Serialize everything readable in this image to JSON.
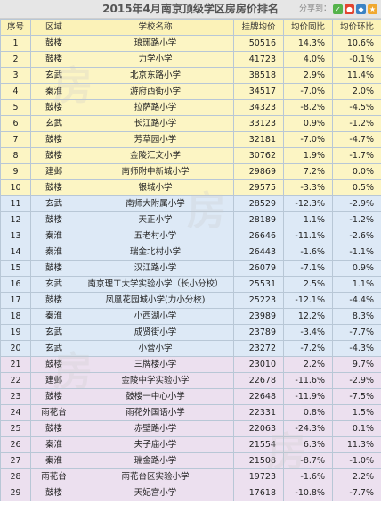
{
  "title": "2015年4月南京顶级学区房房价排名",
  "share": {
    "label": "分享到：",
    "icons": [
      "wechat-icon",
      "weibo-icon",
      "qq-icon",
      "star-icon"
    ]
  },
  "headers": [
    "序号",
    "区域",
    "学校名称",
    "挂牌均价",
    "均价同比",
    "均价环比"
  ],
  "rows": [
    [
      "1",
      "鼓楼",
      "琅琊路小学",
      "50516",
      "14.3%",
      "10.6%"
    ],
    [
      "2",
      "鼓楼",
      "力学小学",
      "41723",
      "4.0%",
      "-0.1%"
    ],
    [
      "3",
      "玄武",
      "北京东路小学",
      "38518",
      "2.9%",
      "11.4%"
    ],
    [
      "4",
      "秦淮",
      "游府西街小学",
      "34517",
      "-7.0%",
      "2.0%"
    ],
    [
      "5",
      "鼓楼",
      "拉萨路小学",
      "34323",
      "-8.2%",
      "-4.5%"
    ],
    [
      "6",
      "玄武",
      "长江路小学",
      "33123",
      "0.9%",
      "-1.2%"
    ],
    [
      "7",
      "鼓楼",
      "芳草园小学",
      "32181",
      "-7.0%",
      "-4.7%"
    ],
    [
      "8",
      "鼓楼",
      "金陵汇文小学",
      "30762",
      "1.9%",
      "-1.7%"
    ],
    [
      "9",
      "建邺",
      "南师附中新城小学",
      "29869",
      "7.2%",
      "0.0%"
    ],
    [
      "10",
      "鼓楼",
      "银城小学",
      "29575",
      "-3.3%",
      "0.5%"
    ],
    [
      "11",
      "玄武",
      "南师大附属小学",
      "28529",
      "-12.3%",
      "-2.9%"
    ],
    [
      "12",
      "鼓楼",
      "天正小学",
      "28189",
      "1.1%",
      "-1.2%"
    ],
    [
      "13",
      "秦淮",
      "五老村小学",
      "26646",
      "-11.1%",
      "-2.6%"
    ],
    [
      "14",
      "秦淮",
      "瑞金北村小学",
      "26443",
      "-1.6%",
      "-1.1%"
    ],
    [
      "15",
      "鼓楼",
      "汉江路小学",
      "26079",
      "-7.1%",
      "0.9%"
    ],
    [
      "16",
      "玄武",
      "南京理工大学实验小学（长小分校）",
      "25531",
      "2.5%",
      "1.1%"
    ],
    [
      "17",
      "鼓楼",
      "凤凰花园城小学(力小分校)",
      "25223",
      "-12.1%",
      "-4.4%"
    ],
    [
      "18",
      "秦淮",
      "小西湖小学",
      "23989",
      "12.2%",
      "8.3%"
    ],
    [
      "19",
      "玄武",
      "成贤街小学",
      "23789",
      "-3.4%",
      "-7.7%"
    ],
    [
      "20",
      "玄武",
      "小营小学",
      "23272",
      "-7.2%",
      "-4.3%"
    ],
    [
      "21",
      "鼓楼",
      "三牌楼小学",
      "23010",
      "2.2%",
      "9.7%"
    ],
    [
      "22",
      "建邺",
      "金陵中学实验小学",
      "22678",
      "-11.6%",
      "-2.9%"
    ],
    [
      "23",
      "鼓楼",
      "鼓楼一中心小学",
      "22648",
      "-11.9%",
      "-7.5%"
    ],
    [
      "24",
      "雨花台",
      "雨花外国语小学",
      "22331",
      "0.8%",
      "1.5%"
    ],
    [
      "25",
      "鼓楼",
      "赤壁路小学",
      "22063",
      "-24.3%",
      "0.1%"
    ],
    [
      "26",
      "秦淮",
      "夫子庙小学",
      "21554",
      "6.3%",
      "11.3%"
    ],
    [
      "27",
      "秦淮",
      "瑞金路小学",
      "21508",
      "-8.7%",
      "-1.0%"
    ],
    [
      "28",
      "雨花台",
      "雨花台区实验小学",
      "19723",
      "-1.6%",
      "2.2%"
    ],
    [
      "29",
      "鼓楼",
      "天妃宫小学",
      "17618",
      "-10.8%",
      "-7.7%"
    ]
  ],
  "bands": [
    "y",
    "y",
    "y",
    "y",
    "y",
    "y",
    "y",
    "y",
    "y",
    "y",
    "b",
    "b",
    "b",
    "b",
    "b",
    "b",
    "b",
    "b",
    "b",
    "b",
    "p",
    "p",
    "p",
    "p",
    "p",
    "p",
    "p",
    "p",
    "p"
  ],
  "colors": {
    "yellow": "#fcf5c4",
    "blue": "#dde9f6",
    "purple": "#ece0ef",
    "header": "#fbf2b8"
  }
}
